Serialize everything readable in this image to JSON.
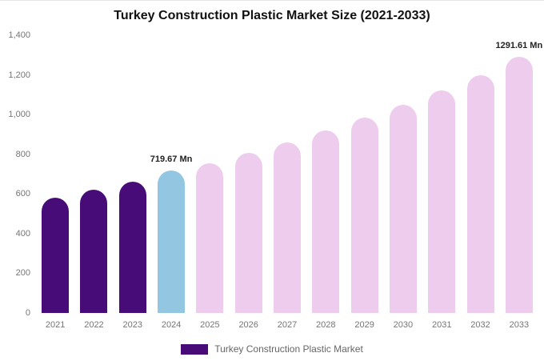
{
  "title": "Turkey Construction Plastic Market Size (2021-2033)",
  "legend": {
    "label": "Turkey Construction Plastic Market"
  },
  "colors": {
    "historical": "#470c78",
    "current": "#93c6e1",
    "forecast": "#edccee",
    "axis_text": "#757575",
    "title_text": "#111111",
    "annotation_text": "#222222"
  },
  "chart_data": {
    "type": "bar",
    "title": "Turkey Construction Plastic Market Size (2021-2033)",
    "categories": [
      "2021",
      "2022",
      "2023",
      "2024",
      "2025",
      "2026",
      "2027",
      "2028",
      "2029",
      "2030",
      "2031",
      "2032",
      "2033"
    ],
    "values": [
      580,
      622,
      662,
      719.67,
      755,
      808,
      860,
      920,
      985,
      1050,
      1120,
      1200,
      1291.61
    ],
    "unit": "Mn",
    "xlabel": "",
    "ylabel": "",
    "ylim": [
      0,
      1400
    ],
    "y_ticks": [
      "0",
      "200",
      "400",
      "600",
      "800",
      "1,000",
      "1,200",
      "1,400"
    ],
    "color_roles": [
      "historical",
      "historical",
      "historical",
      "current",
      "forecast",
      "forecast",
      "forecast",
      "forecast",
      "forecast",
      "forecast",
      "forecast",
      "forecast",
      "forecast"
    ],
    "annotations": [
      {
        "index": 3,
        "text": "719.67 Mn"
      },
      {
        "index": 12,
        "text": "1291.61 Mn"
      }
    ],
    "legend_entries": [
      "Turkey Construction Plastic Market"
    ],
    "grid": false,
    "legend_position": "bottom"
  }
}
